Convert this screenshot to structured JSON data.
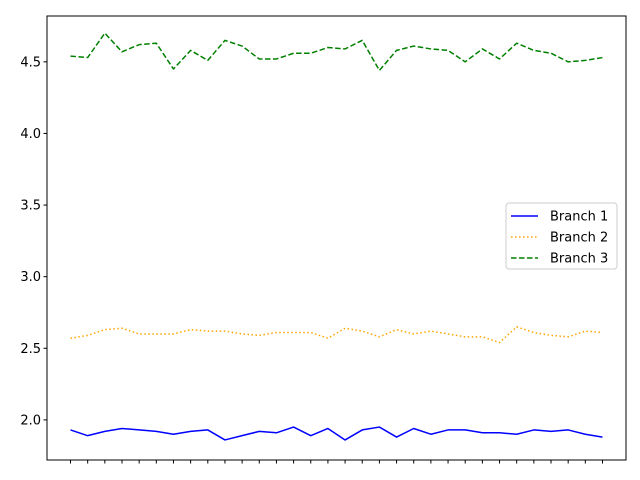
{
  "chart_data": {
    "type": "line",
    "title": "",
    "xlabel": "",
    "ylabel": "",
    "x": [
      0,
      1,
      2,
      3,
      4,
      5,
      6,
      7,
      8,
      9,
      10,
      11,
      12,
      13,
      14,
      15,
      16,
      17,
      18,
      19,
      20,
      21,
      22,
      23,
      24,
      25,
      26,
      27,
      28,
      29,
      30,
      31
    ],
    "ylim": [
      1.72,
      4.82
    ],
    "yticks": [
      "2.0",
      "2.5",
      "3.0",
      "3.5",
      "4.0",
      "4.5"
    ],
    "grid": false,
    "legend_position": "center-right",
    "series": [
      {
        "name": "Branch 1",
        "color": "#0000ff",
        "style": "solid",
        "values": [
          1.93,
          1.89,
          1.92,
          1.94,
          1.93,
          1.92,
          1.9,
          1.92,
          1.93,
          1.86,
          1.89,
          1.92,
          1.91,
          1.95,
          1.89,
          1.94,
          1.86,
          1.93,
          1.95,
          1.88,
          1.94,
          1.9,
          1.93,
          1.93,
          1.91,
          1.91,
          1.9,
          1.93,
          1.92,
          1.93,
          1.9,
          1.88
        ]
      },
      {
        "name": "Branch 2",
        "color": "#ffa500",
        "style": "dotted",
        "values": [
          2.57,
          2.59,
          2.63,
          2.64,
          2.6,
          2.6,
          2.6,
          2.63,
          2.62,
          2.62,
          2.6,
          2.59,
          2.61,
          2.61,
          2.61,
          2.57,
          2.64,
          2.62,
          2.58,
          2.63,
          2.6,
          2.62,
          2.6,
          2.58,
          2.58,
          2.54,
          2.65,
          2.61,
          2.59,
          2.58,
          2.62,
          2.61
        ]
      },
      {
        "name": "Branch 3",
        "color": "#008000",
        "style": "dashed",
        "values": [
          4.54,
          4.53,
          4.7,
          4.57,
          4.62,
          4.63,
          4.45,
          4.58,
          4.51,
          4.65,
          4.61,
          4.52,
          4.52,
          4.56,
          4.56,
          4.6,
          4.59,
          4.65,
          4.44,
          4.58,
          4.61,
          4.59,
          4.58,
          4.5,
          4.59,
          4.52,
          4.63,
          4.58,
          4.56,
          4.5,
          4.51,
          4.53
        ]
      }
    ]
  }
}
